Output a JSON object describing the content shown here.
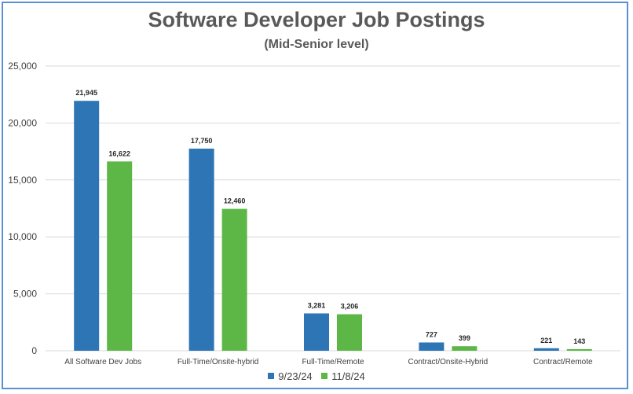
{
  "chart_data": {
    "type": "bar",
    "title": "Software Developer Job Postings",
    "subtitle": "(Mid-Senior level)",
    "categories": [
      "All Software Dev Jobs",
      "Full-Time/Onsite-hybrid",
      "Full-Time/Remote",
      "Contract/Onsite-Hybrid",
      "Contract/Remote"
    ],
    "series": [
      {
        "name": "9/23/24",
        "color": "#2e75b6",
        "values": [
          21945,
          17750,
          3281,
          727,
          221
        ],
        "labels": [
          "21,945",
          "17,750",
          "3,281",
          "727",
          "221"
        ]
      },
      {
        "name": "11/8/24",
        "color": "#5cb747",
        "values": [
          16622,
          12460,
          3206,
          399,
          143
        ],
        "labels": [
          "16,622",
          "12,460",
          "3,206",
          "399",
          "143"
        ]
      }
    ],
    "ylim": [
      0,
      25000
    ],
    "yticks": [
      0,
      5000,
      10000,
      15000,
      20000,
      25000
    ],
    "ytick_labels": [
      "0",
      "5,000",
      "10,000",
      "15,000",
      "20,000",
      "25,000"
    ],
    "grid": true,
    "legend_position": "bottom"
  }
}
